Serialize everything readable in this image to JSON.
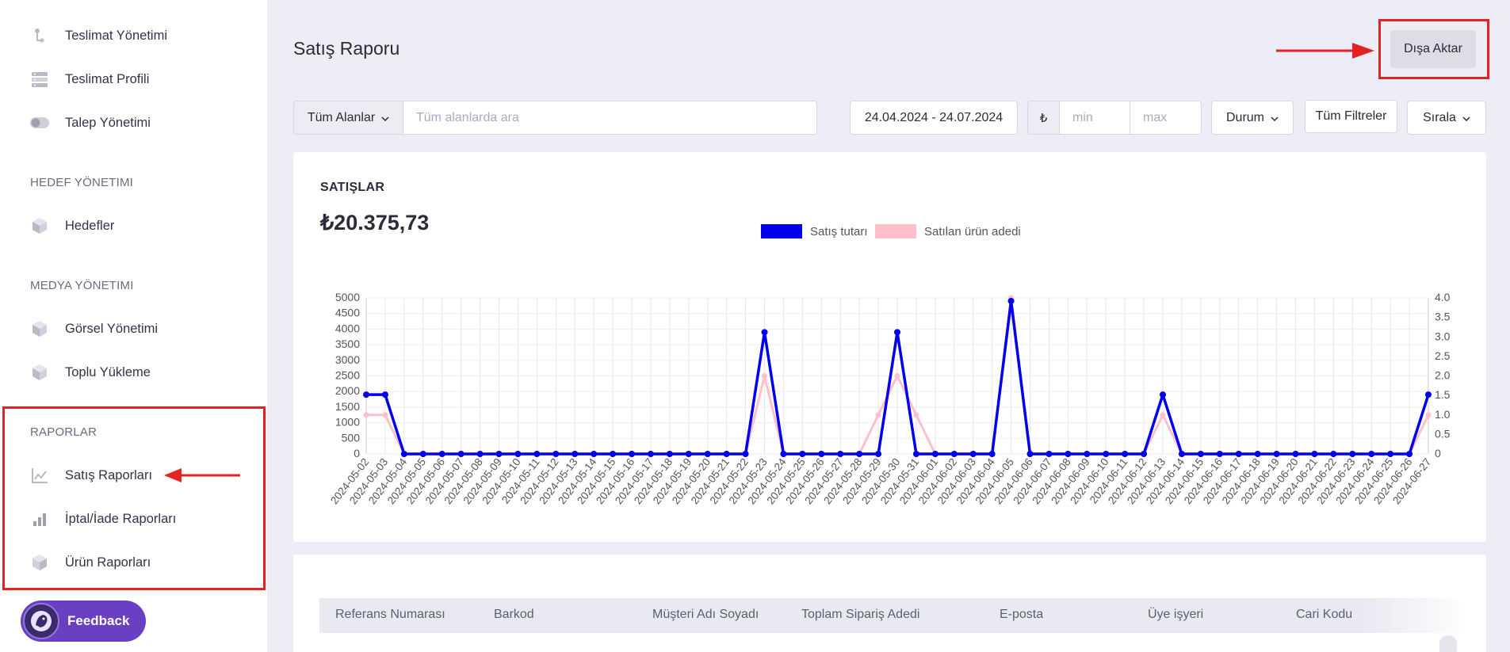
{
  "sidebar": {
    "items": [
      {
        "label": "Teslimat Yönetimi",
        "icon": "delivery-icon"
      },
      {
        "label": "Teslimat Profili",
        "icon": "server-icon"
      },
      {
        "label": "Talep Yönetimi",
        "icon": "toggle-icon"
      },
      {
        "label": "Hedefler",
        "icon": "cube-icon"
      },
      {
        "label": "Görsel Yönetimi",
        "icon": "cube-icon"
      },
      {
        "label": "Toplu Yükleme",
        "icon": "cube-icon"
      },
      {
        "label": "Satış Raporları",
        "icon": "line-chart-icon"
      },
      {
        "label": "İptal/İade Raporları",
        "icon": "bar-chart-icon"
      },
      {
        "label": "Ürün Raporları",
        "icon": "box-icon"
      }
    ],
    "sections": {
      "targets": "HEDEF YÖNETIMI",
      "media": "MEDYA YÖNETIMI",
      "reports": "RAPORLAR"
    },
    "feedback_label": "Feedback"
  },
  "header": {
    "title": "Satış Raporu",
    "export_label": "Dışa Aktar"
  },
  "filters": {
    "field_select": "Tüm Alanlar",
    "search_placeholder": "Tüm alanlarda ara",
    "date_range": "24.04.2024 - 24.07.2024",
    "currency_symbol": "₺",
    "min_placeholder": "min",
    "max_placeholder": "max",
    "status": "Durum",
    "all_filters": "Tüm Filtreler",
    "sort": "Sırala"
  },
  "summary": {
    "title": "SATIŞLAR",
    "total": "₺20.375,73"
  },
  "chart_data": {
    "type": "line",
    "categories": [
      "2024-05-02",
      "2024-05-03",
      "2024-05-04",
      "2024-05-05",
      "2024-05-06",
      "2024-05-07",
      "2024-05-08",
      "2024-05-09",
      "2024-05-10",
      "2024-05-11",
      "2024-05-12",
      "2024-05-13",
      "2024-05-14",
      "2024-05-15",
      "2024-05-16",
      "2024-05-17",
      "2024-05-18",
      "2024-05-19",
      "2024-05-20",
      "2024-05-21",
      "2024-05-22",
      "2024-05-23",
      "2024-05-24",
      "2024-05-25",
      "2024-05-26",
      "2024-05-27",
      "2024-05-28",
      "2024-05-29",
      "2024-05-30",
      "2024-05-31",
      "2024-06-01",
      "2024-06-02",
      "2024-06-03",
      "2024-06-04",
      "2024-06-05",
      "2024-06-06",
      "2024-06-07",
      "2024-06-08",
      "2024-06-09",
      "2024-06-10",
      "2024-06-11",
      "2024-06-12",
      "2024-06-13",
      "2024-06-14",
      "2024-06-15",
      "2024-06-16",
      "2024-06-17",
      "2024-06-18",
      "2024-06-19",
      "2024-06-20",
      "2024-06-21",
      "2024-06-22",
      "2024-06-23",
      "2024-06-24",
      "2024-06-25",
      "2024-06-26",
      "2024-06-27"
    ],
    "series": [
      {
        "name": "Satış tutarı",
        "color": "#0000ee",
        "axis": "left",
        "values": [
          1900,
          1900,
          0,
          0,
          0,
          0,
          0,
          0,
          0,
          0,
          0,
          0,
          0,
          0,
          0,
          0,
          0,
          0,
          0,
          0,
          0,
          3900,
          0,
          0,
          0,
          0,
          0,
          0,
          3900,
          0,
          0,
          0,
          0,
          0,
          4900,
          0,
          0,
          0,
          0,
          0,
          0,
          0,
          1900,
          0,
          0,
          0,
          0,
          0,
          0,
          0,
          0,
          0,
          0,
          0,
          0,
          0,
          1900
        ]
      },
      {
        "name": "Satılan ürün adedi",
        "color": "#ffc0cb",
        "axis": "right",
        "values": [
          1,
          1,
          0,
          0,
          0,
          0,
          0,
          0,
          0,
          0,
          0,
          0,
          0,
          0,
          0,
          0,
          0,
          0,
          0,
          0,
          0,
          2,
          0,
          0,
          0,
          0,
          0,
          1,
          2,
          1,
          0,
          0,
          0,
          0,
          4,
          0,
          0,
          0,
          0,
          0,
          0,
          0,
          1,
          0,
          0,
          0,
          0,
          0,
          0,
          0,
          0,
          0,
          0,
          0,
          0,
          0,
          1
        ]
      }
    ],
    "yleft": {
      "min": 0,
      "max": 5000,
      "ticks": [
        "0",
        "500",
        "1000",
        "1500",
        "2000",
        "2500",
        "3000",
        "3500",
        "4000",
        "4500",
        "5000"
      ]
    },
    "yright": {
      "min": 0,
      "max": 4,
      "ticks": [
        "0",
        "0.5",
        "1.0",
        "1.5",
        "2.0",
        "2.5",
        "3.0",
        "3.5",
        "4.0"
      ]
    },
    "legend_position": "top",
    "grid": true
  },
  "table": {
    "columns": [
      "Referans Numarası",
      "Barkod",
      "Müşteri Adı Soyadı",
      "Toplam Sipariş Adedi",
      "E-posta",
      "Üye işyeri",
      "Cari Kodu"
    ]
  }
}
